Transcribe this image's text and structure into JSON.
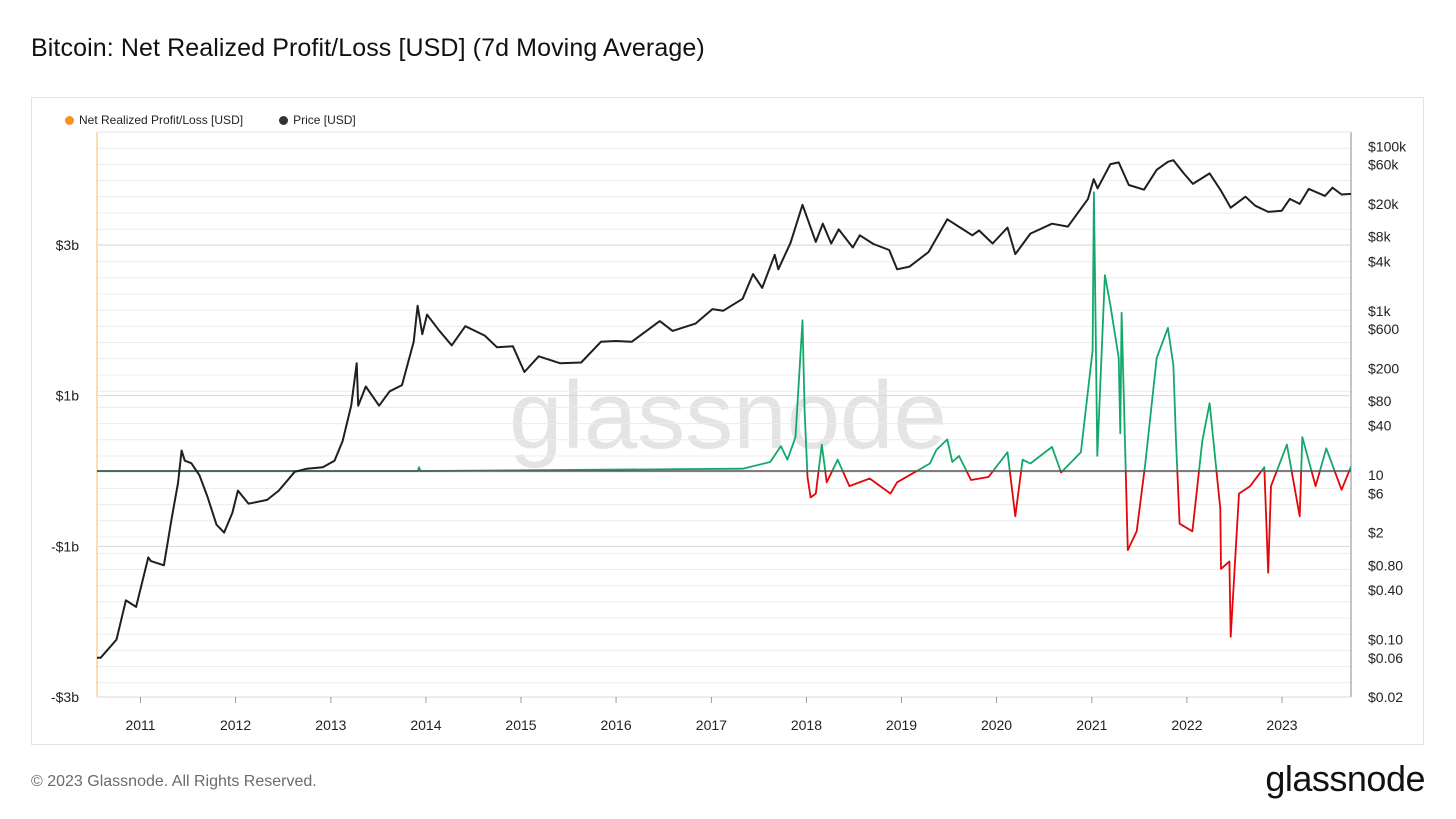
{
  "title": "Bitcoin: Net Realized Profit/Loss [USD] (7d Moving Average)",
  "legend": [
    {
      "label": "Net Realized Profit/Loss [USD]",
      "color": "#f7931a"
    },
    {
      "label": "Price [USD]",
      "color": "#333333"
    }
  ],
  "watermark": "glassnode",
  "footer": {
    "copyright": "© 2023 Glassnode. All Rights Reserved.",
    "brand": "glassnode"
  },
  "colors": {
    "profit": "#13a86b",
    "loss": "#e4050a",
    "price": "#1f1f1f",
    "zero_line": "#555555",
    "grid": "#ececec",
    "left_axis_line": "#f7c88a"
  },
  "chart_data": {
    "type": "line",
    "x_range": [
      "2010-07-18",
      "2023-09-23"
    ],
    "x_ticks": [
      "2011",
      "2012",
      "2013",
      "2014",
      "2015",
      "2016",
      "2017",
      "2018",
      "2019",
      "2020",
      "2021",
      "2022",
      "2023"
    ],
    "left_axis": {
      "label": "",
      "range": [
        -3000000000,
        4500000000
      ],
      "ticks": [
        {
          "value": 3000000000,
          "label": "$3b"
        },
        {
          "value": 1000000000,
          "label": "$1b"
        },
        {
          "value": -1000000000,
          "label": "-$1b"
        },
        {
          "value": -3000000000,
          "label": "-$3b"
        }
      ]
    },
    "right_axis": {
      "label": "",
      "scale": "log",
      "range": [
        0.02,
        150000
      ],
      "ticks": [
        {
          "value": 100000,
          "label": "$100k"
        },
        {
          "value": 60000,
          "label": "$60k"
        },
        {
          "value": 20000,
          "label": "$20k"
        },
        {
          "value": 8000,
          "label": "$8k"
        },
        {
          "value": 4000,
          "label": "$4k"
        },
        {
          "value": 1000,
          "label": "$1k"
        },
        {
          "value": 600,
          "label": "$600"
        },
        {
          "value": 200,
          "label": "$200"
        },
        {
          "value": 80,
          "label": "$80"
        },
        {
          "value": 40,
          "label": "$40"
        },
        {
          "value": 10,
          "label": "10"
        },
        {
          "value": 6,
          "label": "$6"
        },
        {
          "value": 2,
          "label": "$2"
        },
        {
          "value": 0.8,
          "label": "$0.80"
        },
        {
          "value": 0.4,
          "label": "$0.40"
        },
        {
          "value": 0.1,
          "label": "$0.10"
        },
        {
          "value": 0.06,
          "label": "$0.06"
        },
        {
          "value": 0.02,
          "label": "$0.02"
        }
      ]
    },
    "series": [
      {
        "name": "Price [USD]",
        "axis": "right",
        "points": [
          [
            "2010-07-18",
            0.06
          ],
          [
            "2010-08-01",
            0.06
          ],
          [
            "2010-10-01",
            0.1
          ],
          [
            "2010-11-06",
            0.3
          ],
          [
            "2010-12-15",
            0.25
          ],
          [
            "2011-01-31",
            1.0
          ],
          [
            "2011-02-10",
            0.9
          ],
          [
            "2011-04-01",
            0.8
          ],
          [
            "2011-05-01",
            3.0
          ],
          [
            "2011-05-25",
            8.0
          ],
          [
            "2011-06-08",
            20.0
          ],
          [
            "2011-06-20",
            15.0
          ],
          [
            "2011-07-15",
            14.0
          ],
          [
            "2011-08-15",
            10.0
          ],
          [
            "2011-09-15",
            5.5
          ],
          [
            "2011-10-20",
            2.5
          ],
          [
            "2011-11-18",
            2.0
          ],
          [
            "2011-12-20",
            3.5
          ],
          [
            "2012-01-10",
            6.5
          ],
          [
            "2012-02-20",
            4.5
          ],
          [
            "2012-05-01",
            5.0
          ],
          [
            "2012-06-15",
            6.5
          ],
          [
            "2012-08-15",
            11.0
          ],
          [
            "2012-10-01",
            12.0
          ],
          [
            "2012-12-01",
            12.5
          ],
          [
            "2013-01-15",
            15.0
          ],
          [
            "2013-02-15",
            26.0
          ],
          [
            "2013-03-20",
            70.0
          ],
          [
            "2013-04-10",
            230.0
          ],
          [
            "2013-04-16",
            70.0
          ],
          [
            "2013-05-15",
            120.0
          ],
          [
            "2013-07-05",
            70.0
          ],
          [
            "2013-08-15",
            105.0
          ],
          [
            "2013-10-01",
            125.0
          ],
          [
            "2013-11-15",
            420.0
          ],
          [
            "2013-11-30",
            1150.0
          ],
          [
            "2013-12-18",
            520.0
          ],
          [
            "2014-01-05",
            900.0
          ],
          [
            "2014-02-20",
            580.0
          ],
          [
            "2014-04-10",
            380.0
          ],
          [
            "2014-06-01",
            650.0
          ],
          [
            "2014-08-15",
            500.0
          ],
          [
            "2014-10-01",
            360.0
          ],
          [
            "2014-12-01",
            370.0
          ],
          [
            "2015-01-14",
            180.0
          ],
          [
            "2015-03-10",
            280.0
          ],
          [
            "2015-06-01",
            230.0
          ],
          [
            "2015-08-20",
            235.0
          ],
          [
            "2015-11-04",
            420.0
          ],
          [
            "2015-12-31",
            430.0
          ],
          [
            "2016-03-01",
            420.0
          ],
          [
            "2016-06-17",
            750.0
          ],
          [
            "2016-08-05",
            570.0
          ],
          [
            "2016-11-01",
            700.0
          ],
          [
            "2017-01-05",
            1050.0
          ],
          [
            "2017-02-15",
            1000.0
          ],
          [
            "2017-05-01",
            1400.0
          ],
          [
            "2017-06-10",
            2800.0
          ],
          [
            "2017-07-15",
            1900.0
          ],
          [
            "2017-09-01",
            4800.0
          ],
          [
            "2017-09-15",
            3200.0
          ],
          [
            "2017-11-01",
            6700.0
          ],
          [
            "2017-12-17",
            19500.0
          ],
          [
            "2018-02-06",
            6900.0
          ],
          [
            "2018-03-05",
            11500.0
          ],
          [
            "2018-04-06",
            6600.0
          ],
          [
            "2018-05-05",
            9800.0
          ],
          [
            "2018-06-28",
            5900.0
          ],
          [
            "2018-07-25",
            8300.0
          ],
          [
            "2018-09-15",
            6500.0
          ],
          [
            "2018-11-15",
            5500.0
          ],
          [
            "2018-12-15",
            3200.0
          ],
          [
            "2019-02-01",
            3450.0
          ],
          [
            "2019-04-15",
            5200.0
          ],
          [
            "2019-06-26",
            13000.0
          ],
          [
            "2019-08-15",
            10300.0
          ],
          [
            "2019-09-30",
            8300.0
          ],
          [
            "2019-10-26",
            9500.0
          ],
          [
            "2019-12-17",
            6600.0
          ],
          [
            "2020-02-12",
            10300.0
          ],
          [
            "2020-03-13",
            4900.0
          ],
          [
            "2020-05-10",
            8700.0
          ],
          [
            "2020-08-01",
            11500.0
          ],
          [
            "2020-10-01",
            10600.0
          ],
          [
            "2020-12-17",
            23000.0
          ],
          [
            "2021-01-08",
            40000.0
          ],
          [
            "2021-01-23",
            31000.0
          ],
          [
            "2021-03-13",
            61000.0
          ],
          [
            "2021-04-14",
            64000.0
          ],
          [
            "2021-05-23",
            34000.0
          ],
          [
            "2021-07-20",
            29800.0
          ],
          [
            "2021-09-07",
            52000.0
          ],
          [
            "2021-10-20",
            65000.0
          ],
          [
            "2021-11-10",
            68000.0
          ],
          [
            "2021-12-20",
            47000.0
          ],
          [
            "2022-01-24",
            35000.0
          ],
          [
            "2022-03-29",
            47000.0
          ],
          [
            "2022-05-12",
            29000.0
          ],
          [
            "2022-06-18",
            18000.0
          ],
          [
            "2022-08-14",
            24500.0
          ],
          [
            "2022-09-20",
            19000.0
          ],
          [
            "2022-11-09",
            16000.0
          ],
          [
            "2022-12-31",
            16500.0
          ],
          [
            "2023-01-31",
            23000.0
          ],
          [
            "2023-03-10",
            20000.0
          ],
          [
            "2023-04-14",
            30500.0
          ],
          [
            "2023-06-15",
            25000.0
          ],
          [
            "2023-07-14",
            31500.0
          ],
          [
            "2023-08-18",
            26000.0
          ],
          [
            "2023-09-23",
            26500.0
          ]
        ]
      },
      {
        "name": "Net Realized Profit/Loss [USD]",
        "axis": "left",
        "points": [
          [
            "2010-07-18",
            0
          ],
          [
            "2013-12-01",
            0
          ],
          [
            "2013-12-05",
            50000000
          ],
          [
            "2013-12-12",
            0
          ],
          [
            "2017-05-01",
            30000000
          ],
          [
            "2017-08-15",
            120000000
          ],
          [
            "2017-09-25",
            330000000
          ],
          [
            "2017-10-20",
            150000000
          ],
          [
            "2017-11-20",
            450000000
          ],
          [
            "2017-12-17",
            2000000000
          ],
          [
            "2017-12-25",
            800000000
          ],
          [
            "2018-01-05",
            -80000000
          ],
          [
            "2018-01-17",
            -350000000
          ],
          [
            "2018-02-06",
            -300000000
          ],
          [
            "2018-03-01",
            350000000
          ],
          [
            "2018-03-20",
            -150000000
          ],
          [
            "2018-05-01",
            150000000
          ],
          [
            "2018-06-15",
            -200000000
          ],
          [
            "2018-09-01",
            -100000000
          ],
          [
            "2018-11-20",
            -300000000
          ],
          [
            "2018-12-15",
            -150000000
          ],
          [
            "2019-04-20",
            100000000
          ],
          [
            "2019-05-15",
            280000000
          ],
          [
            "2019-06-26",
            420000000
          ],
          [
            "2019-07-15",
            120000000
          ],
          [
            "2019-08-10",
            200000000
          ],
          [
            "2019-09-25",
            -120000000
          ],
          [
            "2019-12-01",
            -80000000
          ],
          [
            "2020-02-12",
            250000000
          ],
          [
            "2020-03-13",
            -600000000
          ],
          [
            "2020-04-10",
            150000000
          ],
          [
            "2020-05-10",
            100000000
          ],
          [
            "2020-08-01",
            320000000
          ],
          [
            "2020-09-05",
            -20000000
          ],
          [
            "2020-11-20",
            250000000
          ],
          [
            "2021-01-04",
            1600000000
          ],
          [
            "2021-01-09",
            3700000000
          ],
          [
            "2021-01-22",
            200000000
          ],
          [
            "2021-02-20",
            2600000000
          ],
          [
            "2021-03-13",
            2200000000
          ],
          [
            "2021-04-14",
            1500000000
          ],
          [
            "2021-04-20",
            500000000
          ],
          [
            "2021-04-25",
            2100000000
          ],
          [
            "2021-05-19",
            -1050000000
          ],
          [
            "2021-06-22",
            -800000000
          ],
          [
            "2021-07-25",
            100000000
          ],
          [
            "2021-09-07",
            1500000000
          ],
          [
            "2021-10-20",
            1900000000
          ],
          [
            "2021-11-10",
            1400000000
          ],
          [
            "2021-11-20",
            400000000
          ],
          [
            "2021-12-04",
            -700000000
          ],
          [
            "2022-01-22",
            -800000000
          ],
          [
            "2022-03-01",
            400000000
          ],
          [
            "2022-03-29",
            900000000
          ],
          [
            "2022-05-09",
            -500000000
          ],
          [
            "2022-05-12",
            -1300000000
          ],
          [
            "2022-06-13",
            -1200000000
          ],
          [
            "2022-06-18",
            -2200000000
          ],
          [
            "2022-07-20",
            -300000000
          ],
          [
            "2022-09-01",
            -200000000
          ],
          [
            "2022-10-25",
            50000000
          ],
          [
            "2022-11-09",
            -1350000000
          ],
          [
            "2022-11-20",
            -200000000
          ],
          [
            "2023-01-20",
            350000000
          ],
          [
            "2023-03-10",
            -600000000
          ],
          [
            "2023-03-20",
            450000000
          ],
          [
            "2023-05-10",
            -200000000
          ],
          [
            "2023-06-20",
            300000000
          ],
          [
            "2023-08-18",
            -250000000
          ],
          [
            "2023-09-23",
            60000000
          ]
        ]
      }
    ],
    "legend_placement": "top-left",
    "grid": true
  }
}
